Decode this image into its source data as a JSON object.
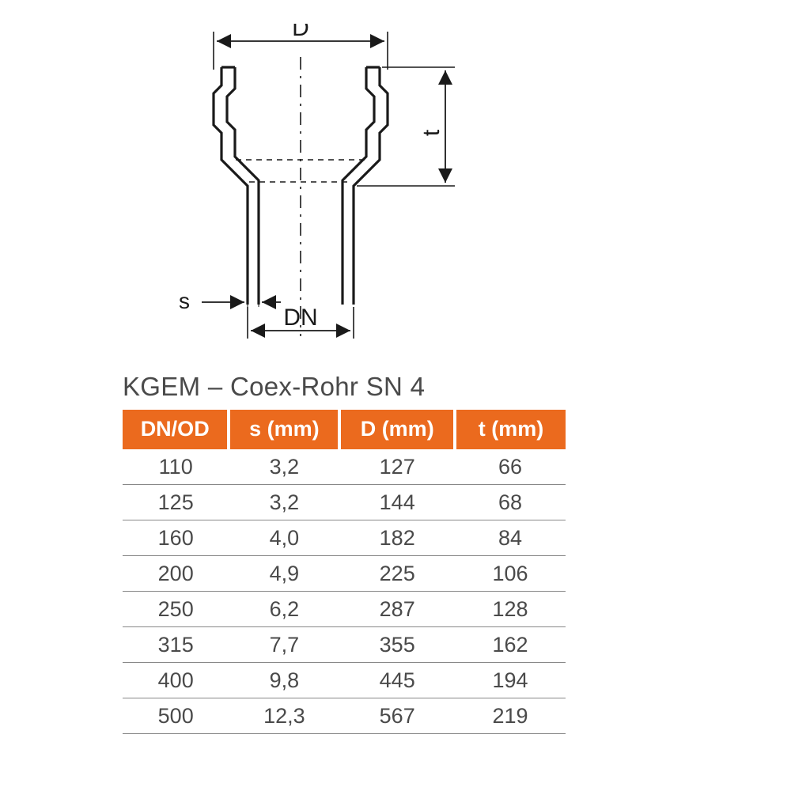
{
  "diagram": {
    "labels": {
      "D": "D",
      "t": "t",
      "s": "s",
      "DN": "DN"
    },
    "stroke_color": "#1a1a1a",
    "stroke_width_heavy": 3.2,
    "stroke_width_thin": 1.8,
    "dash_pattern": "14 8 3 8",
    "arrow_size": 10
  },
  "title": "KGEM – Coex-Rohr SN 4",
  "table": {
    "header_bg": "#eb6a1e",
    "header_fg": "#ffffff",
    "cell_fg": "#4a4a4a",
    "row_border": "#888888",
    "col_widths_pct": [
      24,
      25,
      26,
      25
    ],
    "columns": [
      "DN/OD",
      "s (mm)",
      "D (mm)",
      "t (mm)"
    ],
    "rows": [
      [
        "110",
        "3,2",
        "127",
        "66"
      ],
      [
        "125",
        "3,2",
        "144",
        "68"
      ],
      [
        "160",
        "4,0",
        "182",
        "84"
      ],
      [
        "200",
        "4,9",
        "225",
        "106"
      ],
      [
        "250",
        "6,2",
        "287",
        "128"
      ],
      [
        "315",
        "7,7",
        "355",
        "162"
      ],
      [
        "400",
        "9,8",
        "445",
        "194"
      ],
      [
        "500",
        "12,3",
        "567",
        "219"
      ]
    ]
  }
}
